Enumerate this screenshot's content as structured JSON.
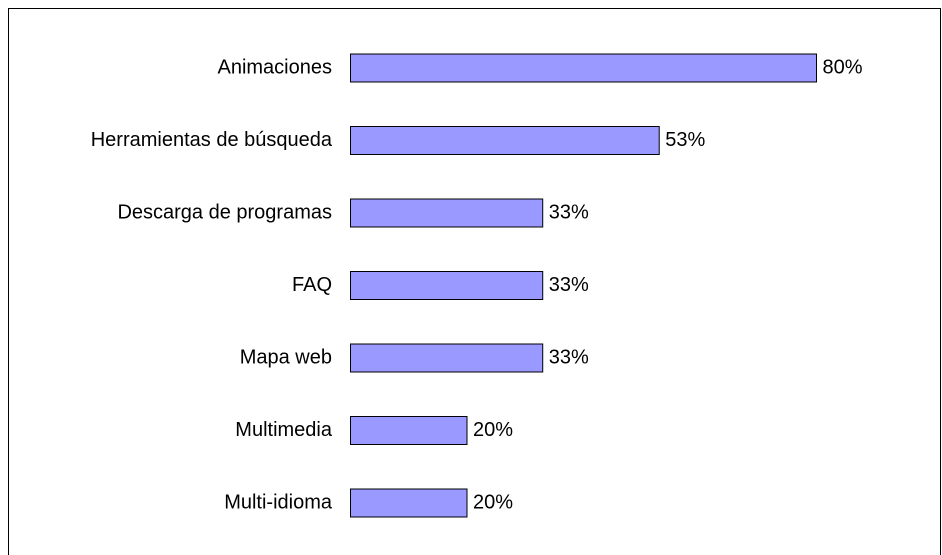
{
  "chart_data": {
    "type": "bar",
    "orientation": "horizontal",
    "categories": [
      "Animaciones",
      "Herramientas de búsqueda",
      "Descarga de programas",
      "FAQ",
      "Mapa web",
      "Multimedia",
      "Multi-idioma"
    ],
    "values": [
      80,
      53,
      33,
      33,
      33,
      20,
      20
    ],
    "value_labels": [
      "80%",
      "53%",
      "33%",
      "33%",
      "33%",
      "20%",
      "20%"
    ],
    "color": "#9999ff"
  }
}
